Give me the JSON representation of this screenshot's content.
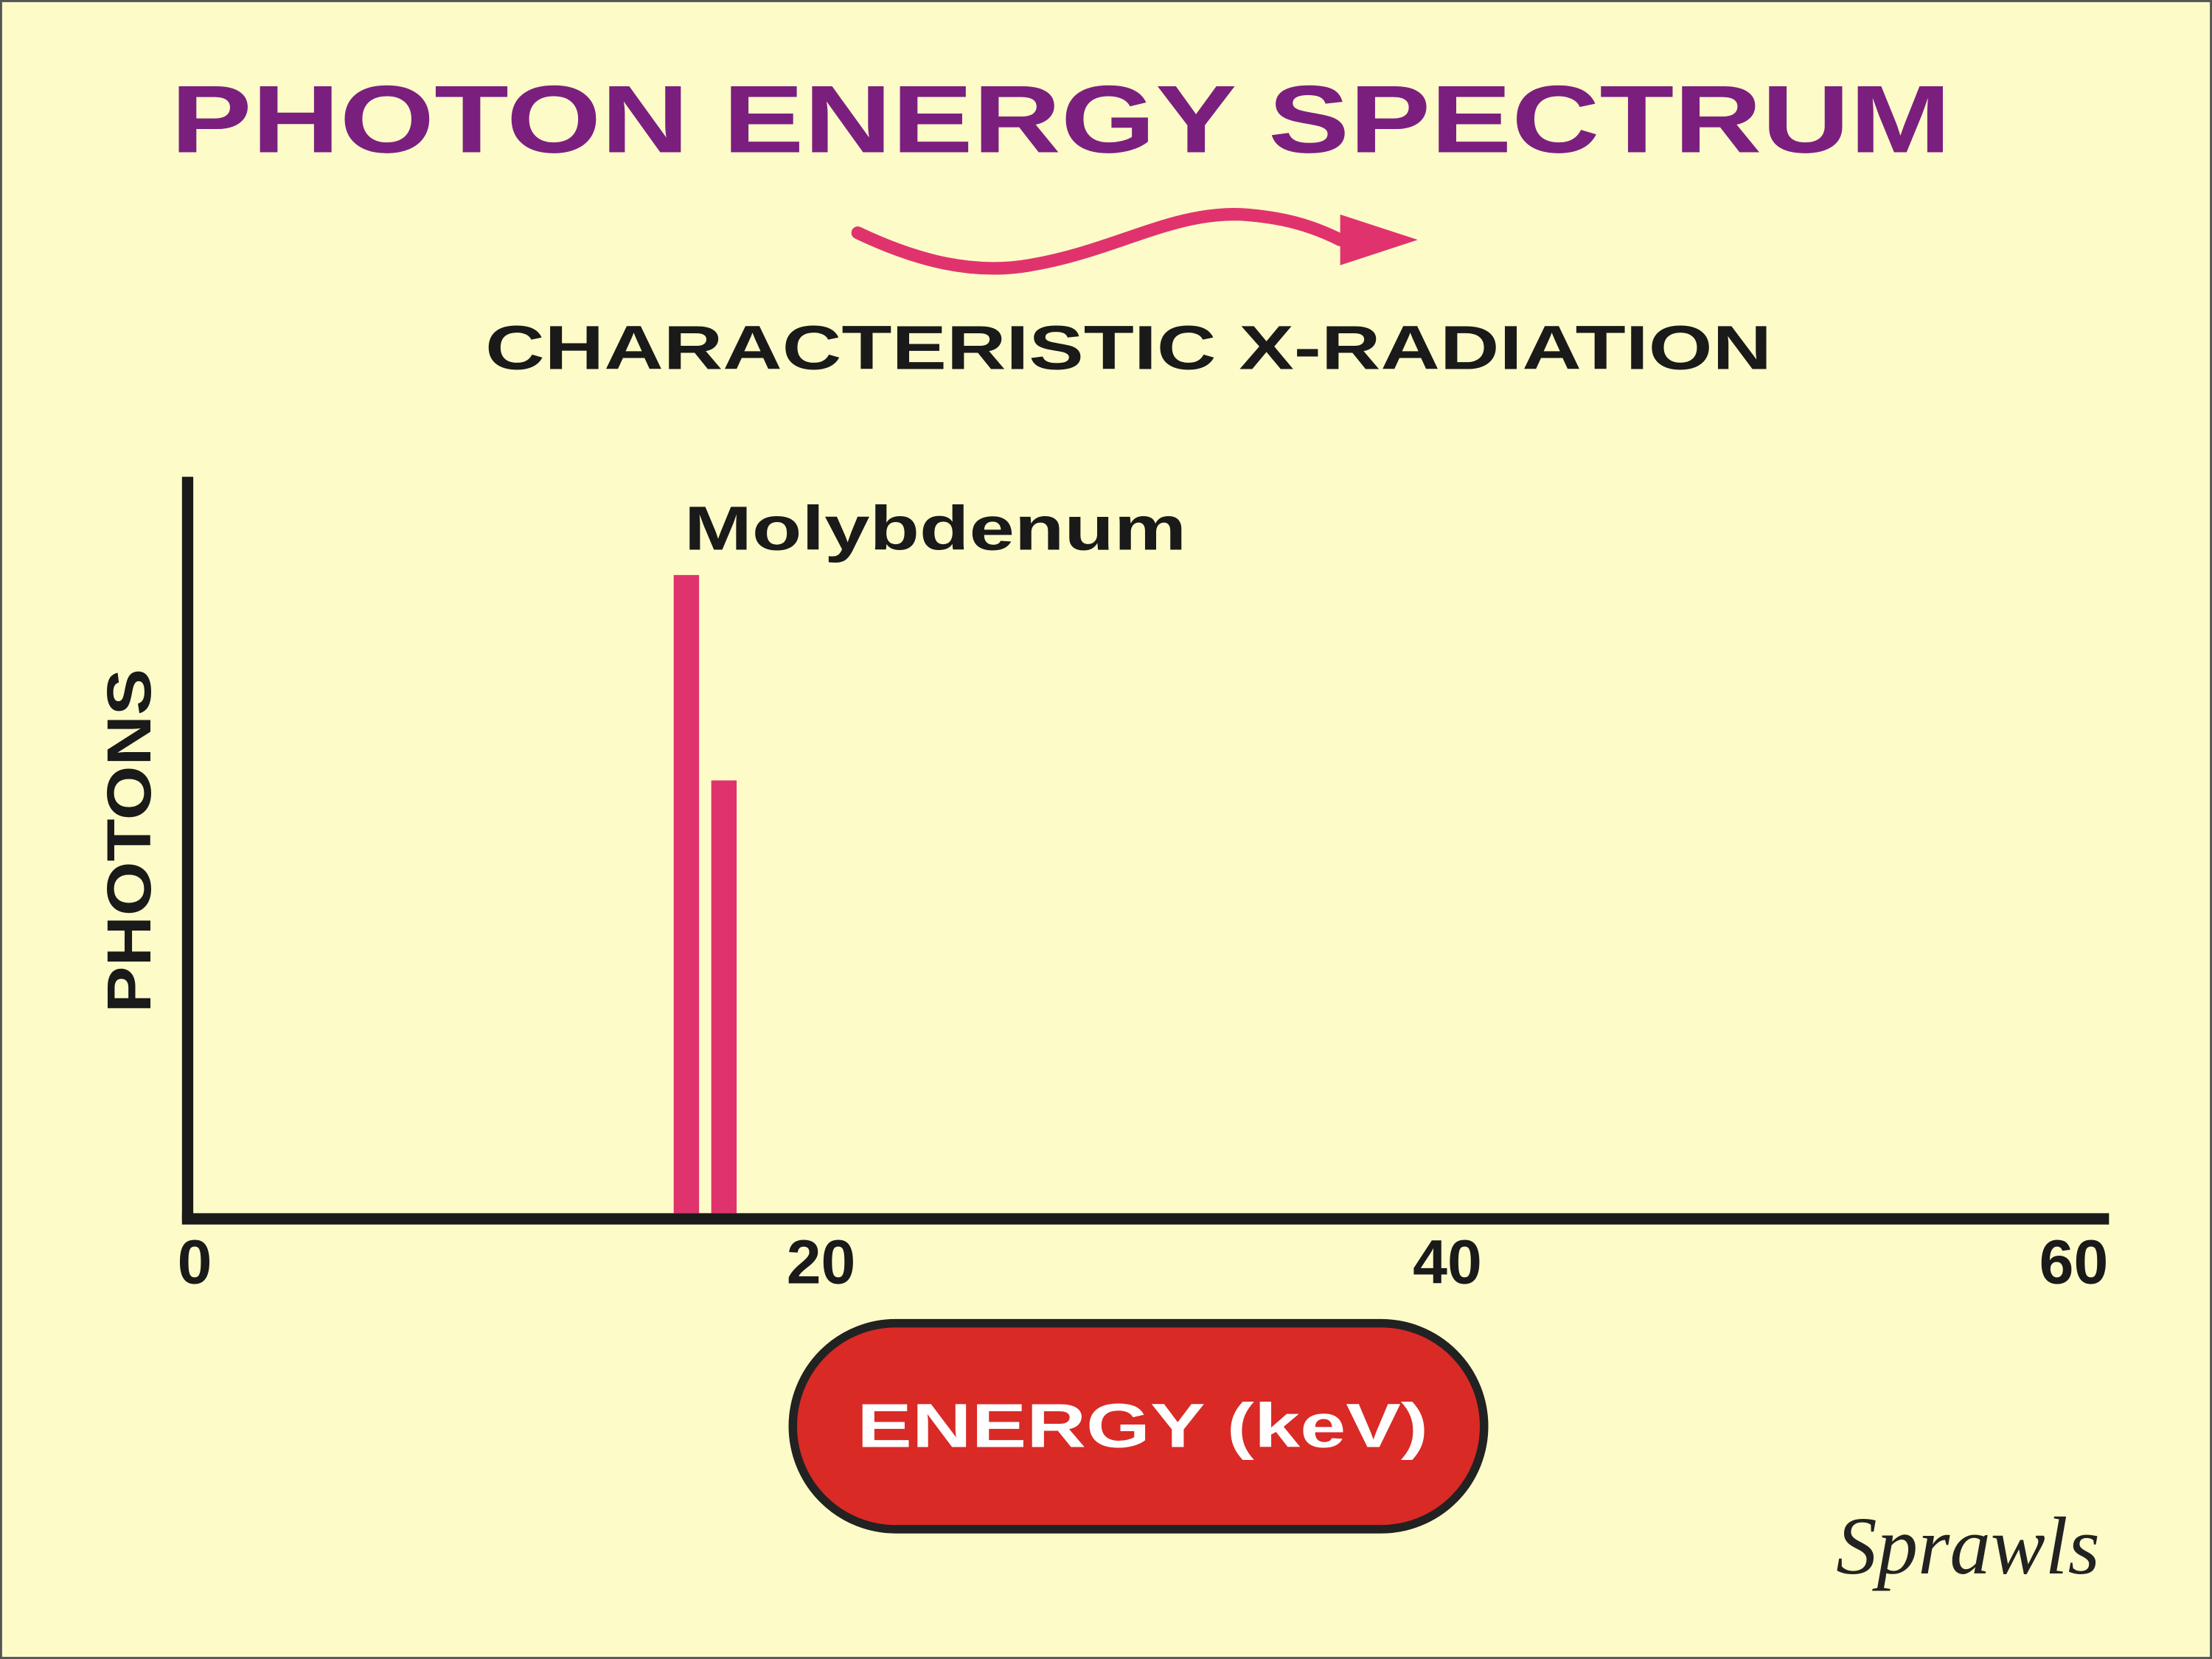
{
  "chart_data": {
    "type": "bar",
    "title": "PHOTON ENERGY SPECTRUM",
    "subtitle": "CHARACTERISTIC X-RADIATION",
    "annotation": "Molybdenum",
    "y_label": "PHOTONS",
    "x_label": "ENERGY (keV)",
    "signature": "Sprawls",
    "x": [
      15.7,
      16.9
    ],
    "values": [
      87,
      59
    ],
    "color": "#e0336e",
    "xlim": [
      0,
      60
    ],
    "xticks": [
      0,
      20,
      40,
      60
    ],
    "ylim": [
      0,
      100
    ]
  }
}
